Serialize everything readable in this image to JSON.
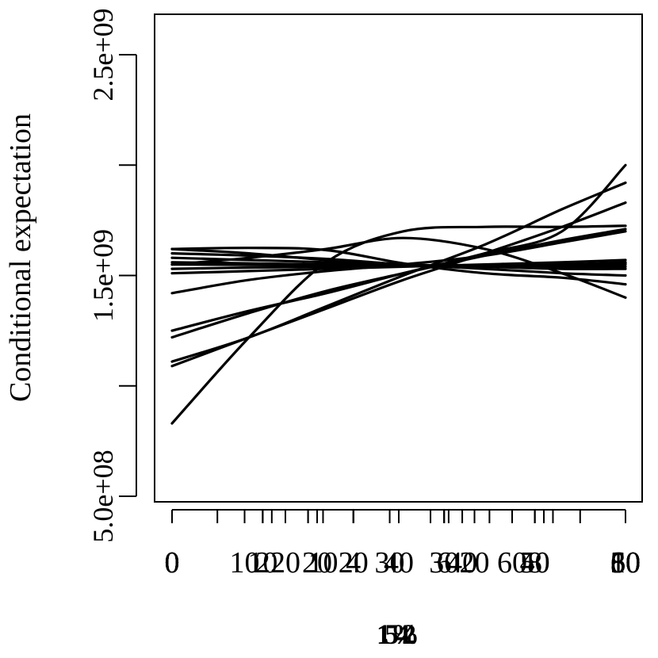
{
  "chart_data": {
    "type": "line",
    "title": "",
    "xlabel": "",
    "ylabel": "Conditional expectation",
    "xlabel_overlapping_glyphs": [
      "1",
      "5",
      "1%",
      "4",
      "2"
    ],
    "ylim": [
      500000000,
      2750000000
    ],
    "xlim": [
      -0.3,
      10.3
    ],
    "yticks": [
      {
        "value": 500000000,
        "label": "5.0e+08"
      },
      {
        "value": 1000000000,
        "label": ""
      },
      {
        "value": 1500000000,
        "label": "1.5e+09"
      },
      {
        "value": 2000000000,
        "label": ""
      },
      {
        "value": 2500000000,
        "label": "2.5e+09"
      }
    ],
    "x_axis_overlays": [
      {
        "ticks": [
          0,
          2,
          4,
          6,
          8,
          10
        ],
        "labels": [
          "0",
          "2",
          "4",
          "6",
          "8",
          "10"
        ]
      },
      {
        "ticks": [
          0,
          2.5,
          5,
          7.5,
          10
        ],
        "labels": [
          "0",
          "20",
          "40",
          "60",
          "80"
        ]
      },
      {
        "ticks": [
          0,
          3.33,
          6.67,
          10
        ],
        "labels": [
          "0",
          "10",
          "20",
          "30"
        ]
      },
      {
        "ticks": [
          0,
          1.0,
          2.0,
          3.0,
          4.0,
          5.0,
          6.0,
          7.0,
          8.0,
          9.0,
          10.0
        ],
        "labels": []
      },
      {
        "ticks": [
          0,
          2.0,
          4.0,
          6.0,
          8.0,
          10.0
        ],
        "labels": [
          "0",
          "10",
          "20",
          "30",
          "40",
          "50"
        ]
      },
      {
        "ticks": [
          0,
          1.6,
          3.2,
          4.8,
          6.4,
          8.0,
          10.0
        ],
        "labels": [
          "0",
          "10",
          "20",
          "30",
          "40",
          "50",
          "60"
        ]
      },
      {
        "ticks": [
          0,
          3.0,
          5.7,
          8.2,
          10.0
        ],
        "labels": [
          "0",
          "",
          "",
          "",
          "60"
        ]
      },
      {
        "ticks": [
          0,
          2.2,
          4.0,
          6.1,
          8.4
        ],
        "labels": []
      }
    ],
    "grid": false,
    "legend": null,
    "series": [
      {
        "x": [
          0,
          1.7,
          3.4,
          5.1,
          6.9,
          8.6,
          10
        ],
        "values": [
          830000000,
          1220000000,
          1560000000,
          1700000000,
          1720000000,
          1720000000,
          1725000000
        ]
      },
      {
        "x": [
          0,
          1.7,
          3.4,
          5.1,
          6.9,
          8.6,
          10
        ],
        "values": [
          1110000000,
          1220000000,
          1360000000,
          1500000000,
          1640000000,
          1800000000,
          1920000000
        ]
      },
      {
        "x": [
          0,
          1.7,
          3.4,
          5.1,
          6.9,
          8.6,
          10
        ],
        "values": [
          1090000000,
          1220000000,
          1350000000,
          1480000000,
          1600000000,
          1720000000,
          1830000000
        ]
      },
      {
        "x": [
          0,
          1.7,
          3.4,
          5.1,
          6.9,
          8.6,
          10
        ],
        "values": [
          1220000000,
          1330000000,
          1430000000,
          1510000000,
          1590000000,
          1660000000,
          1710000000
        ]
      },
      {
        "x": [
          0,
          1.7,
          3.4,
          5.1,
          6.9,
          8.6,
          10
        ],
        "values": [
          1250000000,
          1340000000,
          1420000000,
          1510000000,
          1600000000,
          1700000000,
          2000000000
        ]
      },
      {
        "x": [
          0,
          1.7,
          3.4,
          5.1,
          6.9,
          8.6,
          10
        ],
        "values": [
          1420000000,
          1480000000,
          1520000000,
          1550000000,
          1590000000,
          1650000000,
          1700000000
        ]
      },
      {
        "x": [
          0,
          1.7,
          3.4,
          5.1,
          6.9,
          8.6,
          10
        ],
        "values": [
          1550000000,
          1580000000,
          1620000000,
          1670000000,
          1620000000,
          1510000000,
          1400000000
        ]
      },
      {
        "x": [
          0,
          1.7,
          3.4,
          5.1,
          6.9,
          8.6,
          10
        ],
        "values": [
          1620000000,
          1625000000,
          1615000000,
          1555000000,
          1510000000,
          1490000000,
          1460000000
        ]
      },
      {
        "x": [
          0,
          1.7,
          3.4,
          5.1,
          6.9,
          8.6,
          10
        ],
        "values": [
          1600000000,
          1590000000,
          1575000000,
          1550000000,
          1530000000,
          1510000000,
          1500000000
        ]
      },
      {
        "x": [
          0,
          1.7,
          3.4,
          5.1,
          6.9,
          8.6,
          10
        ],
        "values": [
          1620000000,
          1600000000,
          1570000000,
          1550000000,
          1540000000,
          1530000000,
          1530000000
        ]
      },
      {
        "x": [
          0,
          1.7,
          3.4,
          5.1,
          6.9,
          8.6,
          10
        ],
        "values": [
          1580000000,
          1570000000,
          1560000000,
          1550000000,
          1540000000,
          1540000000,
          1540000000
        ]
      },
      {
        "x": [
          0,
          1.7,
          3.4,
          5.1,
          6.9,
          8.6,
          10
        ],
        "values": [
          1560000000,
          1555000000,
          1550000000,
          1545000000,
          1545000000,
          1545000000,
          1550000000
        ]
      },
      {
        "x": [
          0,
          1.7,
          3.4,
          5.1,
          6.9,
          8.6,
          10
        ],
        "values": [
          1550000000,
          1548000000,
          1546000000,
          1545000000,
          1546000000,
          1550000000,
          1555000000
        ]
      },
      {
        "x": [
          0,
          1.7,
          3.4,
          5.1,
          6.9,
          8.6,
          10
        ],
        "values": [
          1530000000,
          1536000000,
          1540000000,
          1543000000,
          1546000000,
          1550000000,
          1560000000
        ]
      },
      {
        "x": [
          0,
          1.7,
          3.4,
          5.1,
          6.9,
          8.6,
          10
        ],
        "values": [
          1510000000,
          1520000000,
          1530000000,
          1540000000,
          1550000000,
          1560000000,
          1570000000
        ]
      }
    ]
  }
}
